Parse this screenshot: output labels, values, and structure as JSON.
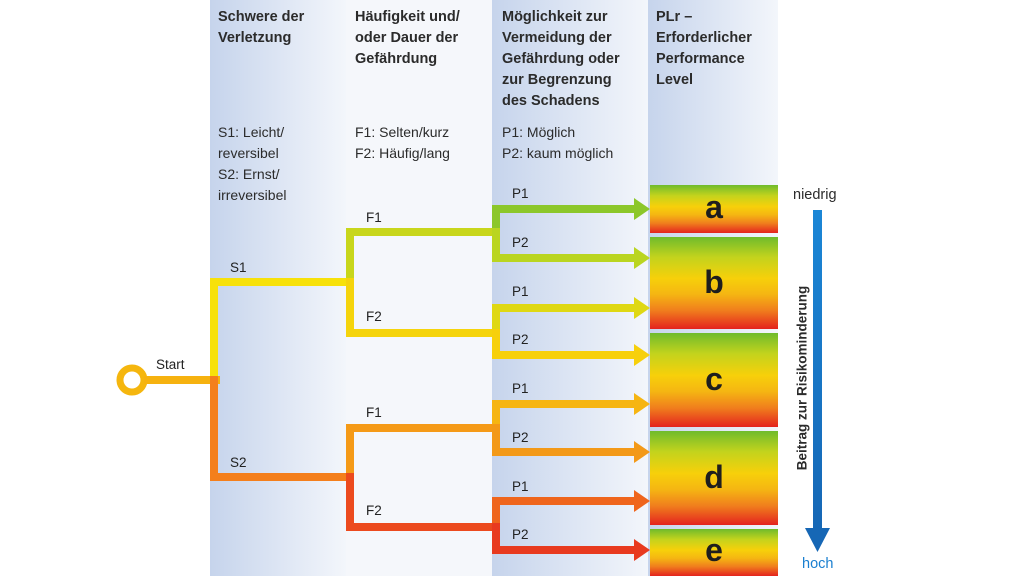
{
  "columns": [
    {
      "header": "Schwere der\nVerletzung",
      "legend": "S1: Leicht/\n      reversibel\nS2: Ernst/\n      irreversibel"
    },
    {
      "header": "Häufigkeit und/\noder Dauer der\nGefährdung",
      "legend": "F1: Selten/kurz\nF2: Häufig/lang"
    },
    {
      "header": "Möglichkeit zur\nVermeidung der\nGefährdung oder\nzur Begrenzung\ndes Schadens",
      "legend": "P1: Möglich\nP2: kaum möglich"
    },
    {
      "header": "PLr –\nErforderlicher\nPerformance\nLevel"
    }
  ],
  "start_label": "Start",
  "branches": {
    "s1": "S1",
    "s2": "S2",
    "f1_upper": "F1",
    "f2_upper": "F2",
    "f1_lower": "F1",
    "f2_lower": "F2",
    "p_labels": [
      "P1",
      "P2",
      "P1",
      "P2",
      "P1",
      "P2",
      "P1",
      "P2"
    ]
  },
  "levels": [
    "a",
    "b",
    "c",
    "d",
    "e"
  ],
  "scale": {
    "top": "niedrig",
    "bottom": "hoch",
    "axis_label": "Beitrag zur Risikominderung"
  },
  "colors": {
    "arrow_blue": "#1a7fd0",
    "column_bg": "#cfdbef",
    "level_a": "#7dbf2a",
    "level_b": "#c6d21c",
    "level_c": "#f6cc0c",
    "level_d": "#f2881a",
    "level_e": "#e8301f"
  }
}
